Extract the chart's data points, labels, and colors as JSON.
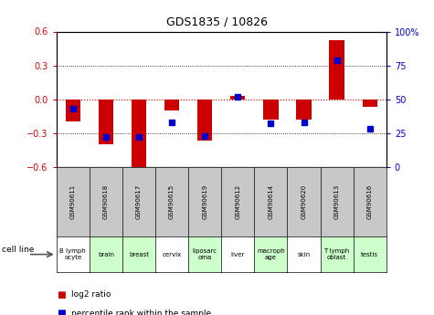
{
  "title": "GDS1835 / 10826",
  "samples": [
    "GSM90611",
    "GSM90618",
    "GSM90617",
    "GSM90615",
    "GSM90619",
    "GSM90612",
    "GSM90614",
    "GSM90620",
    "GSM90613",
    "GSM90616"
  ],
  "cell_lines": [
    "B lymph\nocyte",
    "brain",
    "breast",
    "cervix",
    "liposarc\noma",
    "liver",
    "macroph\nage",
    "skin",
    "T lymph\noblast",
    "testis"
  ],
  "cell_line_colors": [
    "#ffffff",
    "#ccffcc",
    "#ccffcc",
    "#ffffff",
    "#ccffcc",
    "#ffffff",
    "#ccffcc",
    "#ffffff",
    "#ccffcc",
    "#ccffcc"
  ],
  "log2_ratio": [
    -0.2,
    -0.4,
    -0.62,
    -0.1,
    -0.37,
    0.03,
    -0.18,
    -0.18,
    0.52,
    -0.07
  ],
  "percentile_rank": [
    43,
    22,
    22,
    33,
    23,
    52,
    32,
    33,
    79,
    28
  ],
  "ylim_left": [
    -0.6,
    0.6
  ],
  "ylim_right": [
    0,
    100
  ],
  "yticks_left": [
    -0.6,
    -0.3,
    0.0,
    0.3,
    0.6
  ],
  "yticks_right": [
    0,
    25,
    50,
    75,
    100
  ],
  "bar_color": "#cc0000",
  "dot_color": "#0000cc",
  "bg_color": "#ffffff",
  "zero_line_color": "#cc0000",
  "label_color_left": "#cc0000",
  "label_color_right": "#0000cc",
  "gsm_bg": "#c8c8c8"
}
